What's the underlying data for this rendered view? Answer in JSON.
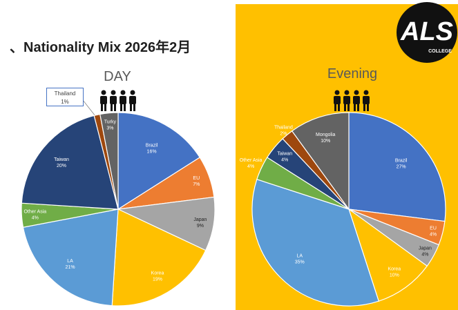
{
  "header": {
    "title": "、Nationality Mix 2026年2月",
    "logo_text": "ALS",
    "logo_subtext": "COLLEGE"
  },
  "colors": {
    "brazil": "#4472c4",
    "eu": "#ed7d31",
    "japan": "#a5a5a5",
    "korea": "#ffc000",
    "la": "#5b9bd5",
    "other_asia": "#70ad47",
    "taiwan": "#264478",
    "thailand": "#9e480e",
    "turky": "#636363",
    "mongolia": "#636363",
    "evening_bg": "#ffc000"
  },
  "chart_data": [
    {
      "type": "pie",
      "title": "DAY",
      "slices": [
        {
          "label": "Brazil",
          "value": 16,
          "text": "16%",
          "color": "#4472c4"
        },
        {
          "label": "EU",
          "value": 7,
          "text": "7%",
          "color": "#ed7d31"
        },
        {
          "label": "Japan",
          "value": 9,
          "text": "9%",
          "color": "#a5a5a5"
        },
        {
          "label": "Korea",
          "value": 19,
          "text": "19%",
          "color": "#ffc000"
        },
        {
          "label": "LA",
          "value": 21,
          "text": "21%",
          "color": "#5b9bd5"
        },
        {
          "label": "Other Asia",
          "value": 4,
          "text": "4%",
          "color": "#70ad47"
        },
        {
          "label": "Taiwan",
          "value": 20,
          "text": "20%",
          "color": "#264478"
        },
        {
          "label": "Thailand",
          "value": 1,
          "text": "1%",
          "color": "#9e480e"
        },
        {
          "label": "Turky",
          "value": 3,
          "text": "3%",
          "color": "#636363"
        }
      ]
    },
    {
      "type": "pie",
      "title": "Evening",
      "slices": [
        {
          "label": "Brazil",
          "value": 27,
          "text": "27%",
          "color": "#4472c4"
        },
        {
          "label": "EU",
          "value": 4,
          "text": "4%",
          "color": "#ed7d31"
        },
        {
          "label": "Japan",
          "value": 4,
          "text": "4%",
          "color": "#a5a5a5"
        },
        {
          "label": "Korea",
          "value": 10,
          "text": "10%",
          "color": "#ffc000"
        },
        {
          "label": "LA",
          "value": 35,
          "text": "35%",
          "color": "#5b9bd5"
        },
        {
          "label": "Other Asia",
          "value": 4,
          "text": "4%",
          "color": "#70ad47"
        },
        {
          "label": "Taiwan",
          "value": 4,
          "text": "4%",
          "color": "#264478"
        },
        {
          "label": "Thailand",
          "value": 2,
          "text": "2%",
          "color": "#9e480e"
        },
        {
          "label": "Mongolia",
          "value": 10,
          "text": "10%",
          "color": "#636363"
        }
      ]
    }
  ]
}
